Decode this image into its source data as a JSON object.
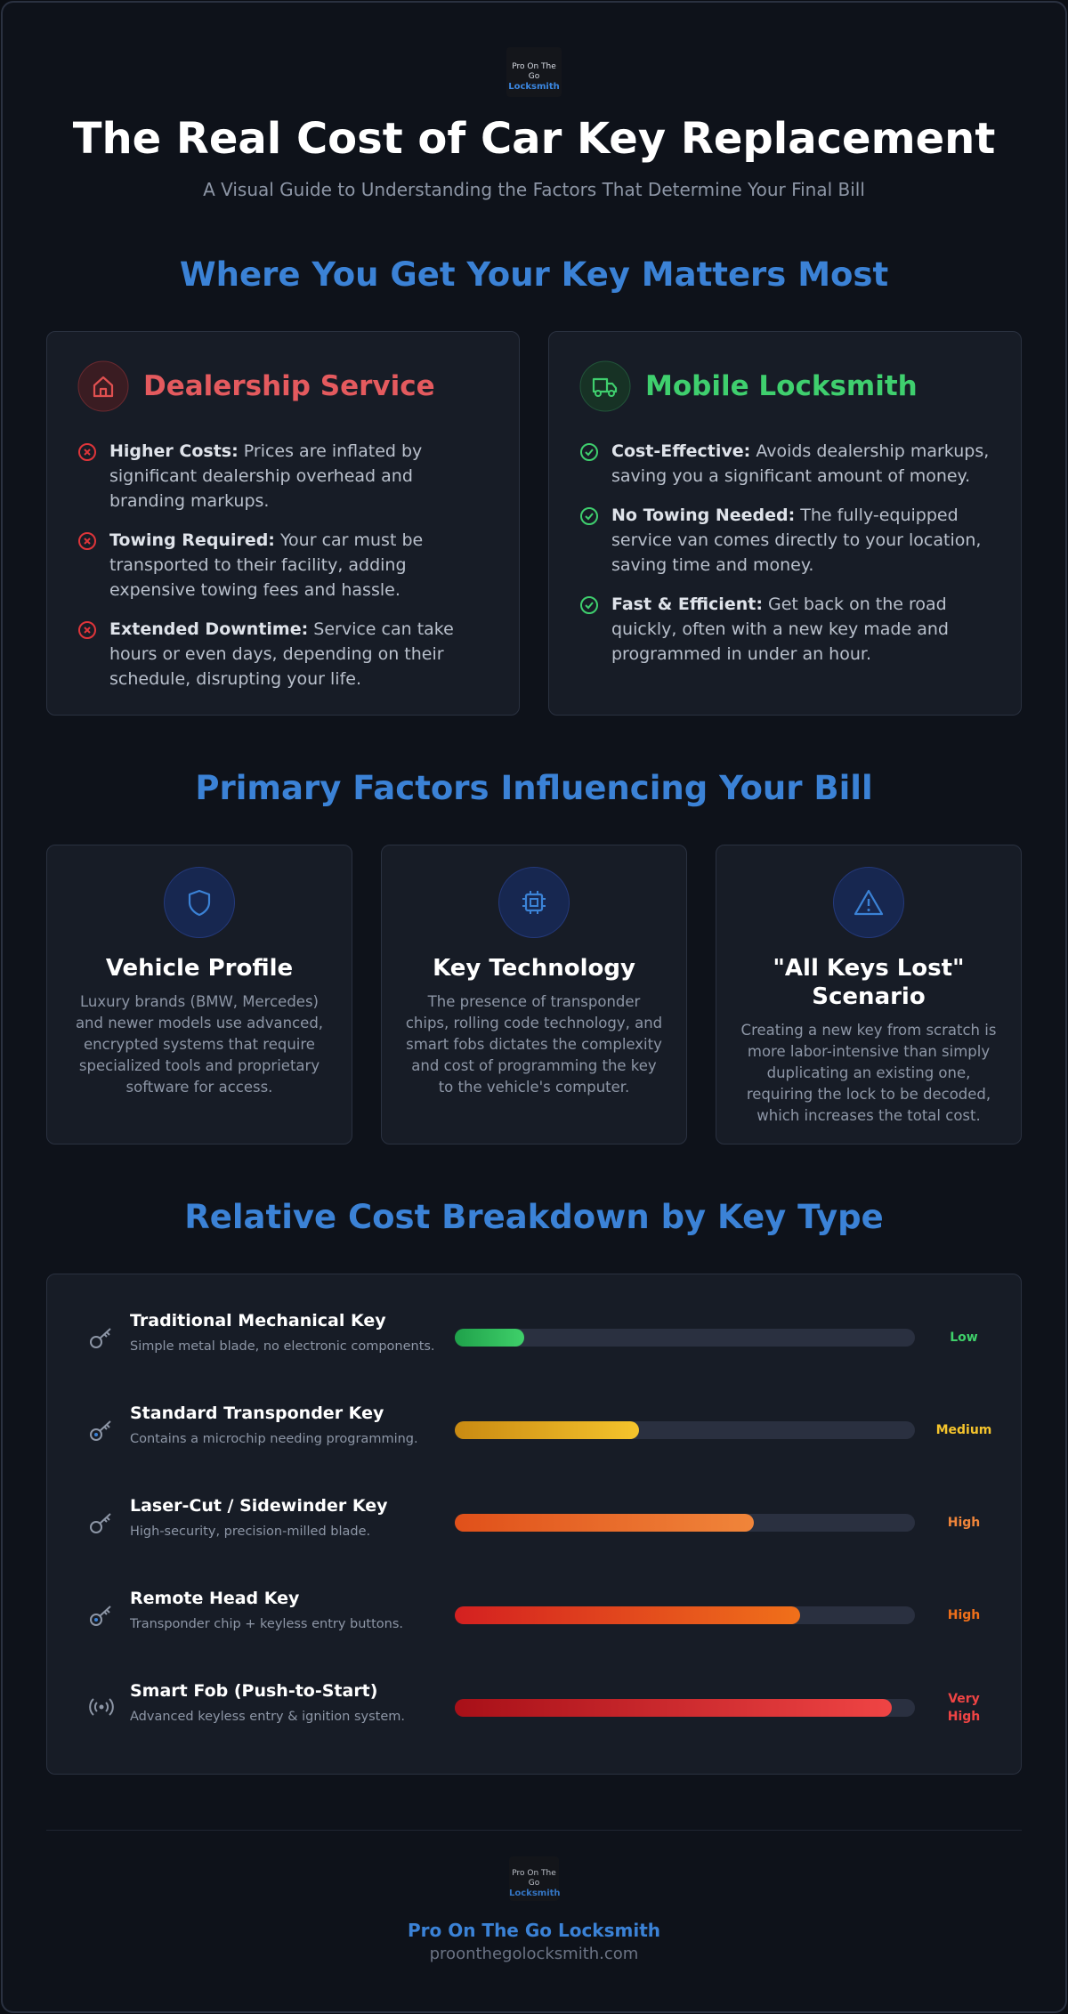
{
  "header": {
    "logo": {
      "line1": "Pro On The Go",
      "line2": "Locksmith"
    },
    "title": "The Real Cost of Car Key Replacement",
    "subtitle": "A Visual Guide to Understanding the Factors That Determine Your Final Bill"
  },
  "comparison": {
    "heading": "Where You Get Your Key Matters Most",
    "cards": [
      {
        "title": "Dealership Service",
        "items": [
          {
            "lead": "Higher Costs:",
            "text": "Prices are inflated by significant dealership overhead and branding markups."
          },
          {
            "lead": "Towing Required:",
            "text": "Your car must be transported to their facility, adding expensive towing fees and hassle."
          },
          {
            "lead": "Extended Downtime:",
            "text": "Service can take hours or even days, depending on their schedule, disrupting your life."
          }
        ]
      },
      {
        "title": "Mobile Locksmith",
        "items": [
          {
            "lead": "Cost-Effective:",
            "text": "Avoids dealership markups, saving you a significant amount of money."
          },
          {
            "lead": "No Towing Needed:",
            "text": "The fully-equipped service van comes directly to your location, saving time and money."
          },
          {
            "lead": "Fast & Efficient:",
            "text": "Get back on the road quickly, often with a new key made and programmed in under an hour."
          }
        ]
      }
    ]
  },
  "factors": {
    "heading": "Primary Factors Influencing Your Bill",
    "cards": [
      {
        "title": "Vehicle Profile",
        "text": "Luxury brands (BMW, Mercedes) and newer models use advanced, encrypted systems that require specialized tools and proprietary software for access."
      },
      {
        "title": "Key Technology",
        "text": "The presence of transponder chips, rolling code technology, and smart fobs dictates the complexity and cost of programming the key to the vehicle's computer."
      },
      {
        "title": "\"All Keys Lost\" Scenario",
        "text": "Creating a new key from scratch is more labor-intensive than simply duplicating an existing one, requiring the lock to be decoded, which increases the total cost."
      }
    ]
  },
  "cost_breakdown": {
    "heading": "Relative Cost Breakdown by Key Type",
    "items": [
      {
        "name": "Traditional Mechanical Key",
        "description": "Simple metal blade, no electronic components.",
        "value": 15,
        "level": "Low",
        "colors": [
          "#1fa14a",
          "#3fd06a"
        ]
      },
      {
        "name": "Standard Transponder Key",
        "description": "Contains a microchip needing programming.",
        "value": 40,
        "level": "Medium",
        "colors": [
          "#c98a12",
          "#f5c42c"
        ]
      },
      {
        "name": "Laser-Cut / Sidewinder Key",
        "description": "High-security, precision-milled blade.",
        "value": 65,
        "level": "High",
        "colors": [
          "#e0501a",
          "#f0853a"
        ]
      },
      {
        "name": "Remote Head Key",
        "description": "Transponder chip + keyless entry buttons.",
        "value": 75,
        "level": "High",
        "colors": [
          "#d42020",
          "#f0701a"
        ]
      },
      {
        "name": "Smart Fob (Push-to-Start)",
        "description": "Advanced keyless entry & ignition system.",
        "value": 95,
        "level": "Very High",
        "colors": [
          "#a81018",
          "#ef4444"
        ]
      }
    ]
  },
  "footer": {
    "logo": {
      "line1": "Pro On The Go",
      "line2": "Locksmith"
    },
    "name": "Pro On The Go Locksmith",
    "url": "proonthegolocksmith.com"
  }
}
